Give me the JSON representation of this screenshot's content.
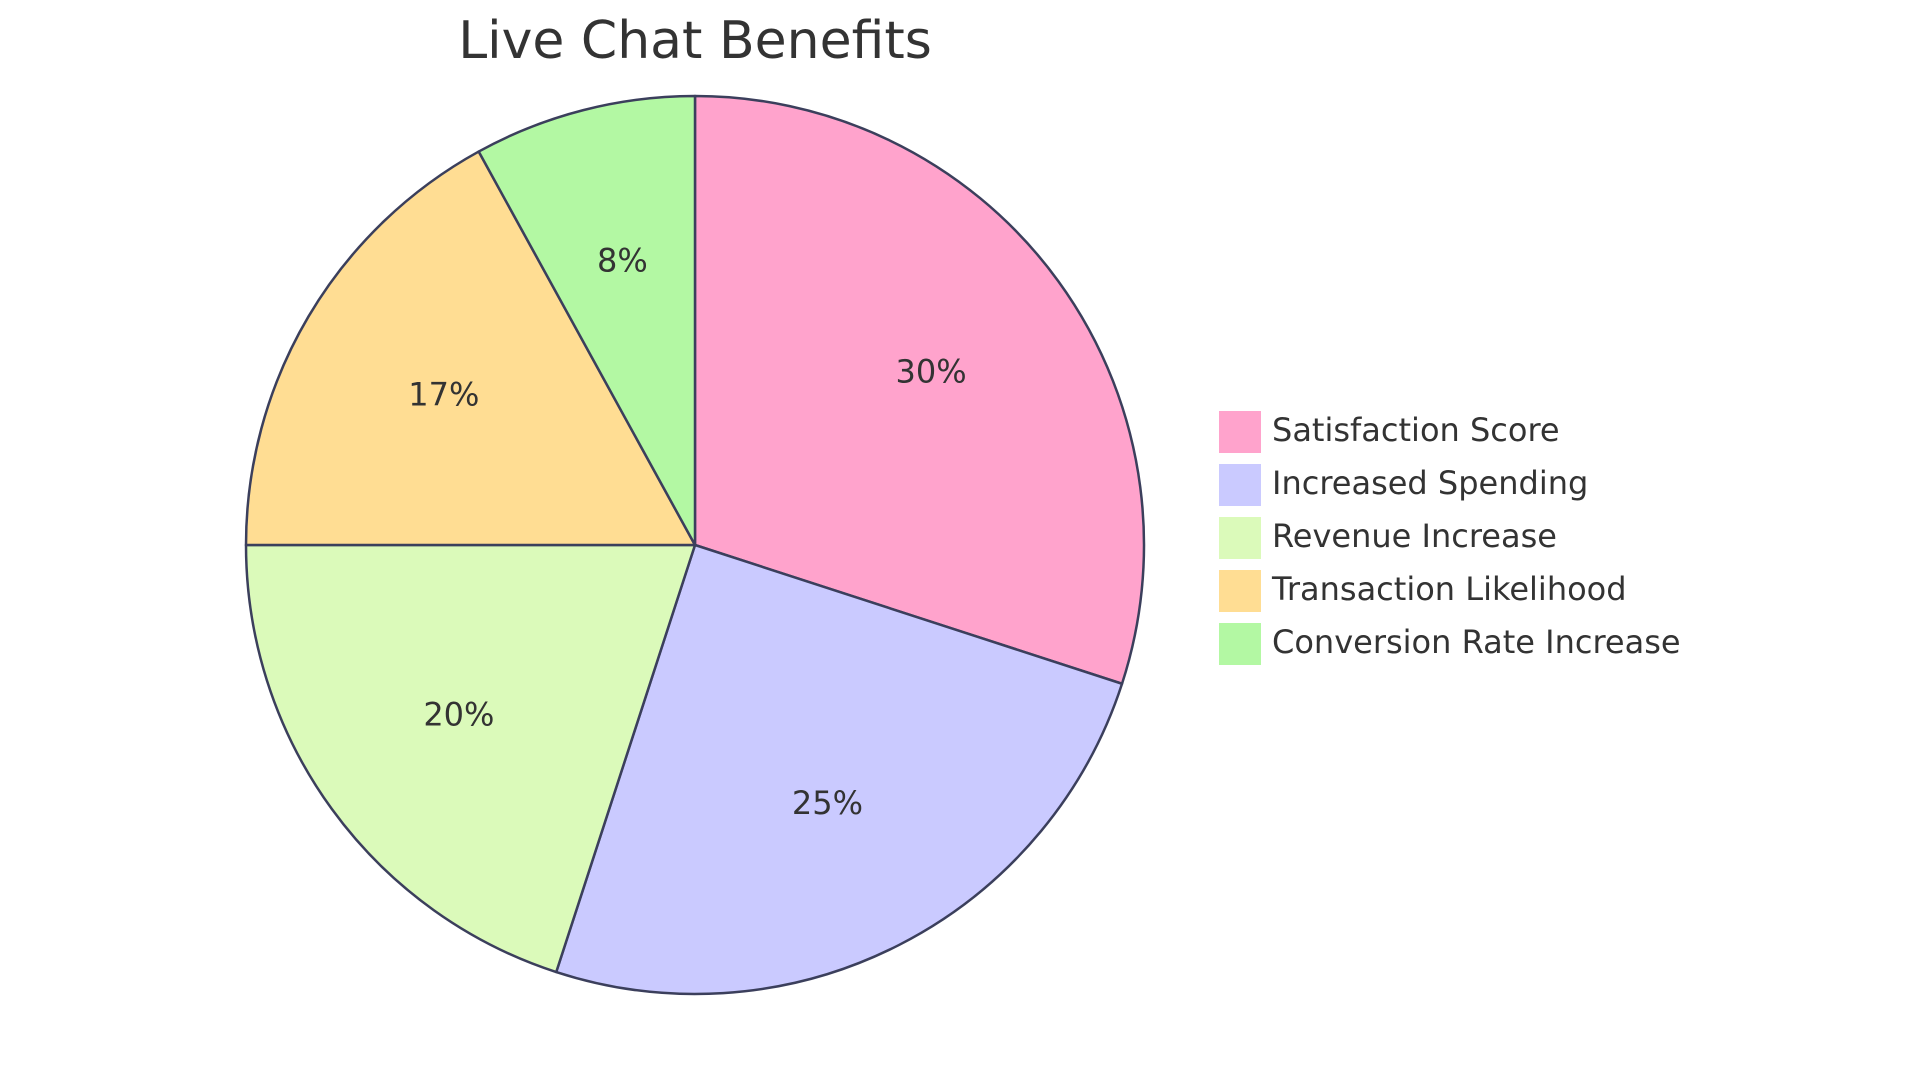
{
  "chart_data": {
    "type": "pie",
    "title": "Live Chat Benefits",
    "slices": [
      {
        "label": "Satisfaction Score",
        "value": 30,
        "display": "30%",
        "color": "#FFA3CC"
      },
      {
        "label": "Increased Spending",
        "value": 25,
        "display": "25%",
        "color": "#CACAFF"
      },
      {
        "label": "Revenue Increase",
        "value": 20,
        "display": "20%",
        "color": "#DBFABA"
      },
      {
        "label": "Transaction Likelihood",
        "value": 17,
        "display": "17%",
        "color": "#FFDD93"
      },
      {
        "label": "Conversion Rate Increase",
        "value": 8,
        "display": "8%",
        "color": "#B3F8A3"
      }
    ],
    "legend_position": "right",
    "stroke_color": "#3B3F5C"
  }
}
